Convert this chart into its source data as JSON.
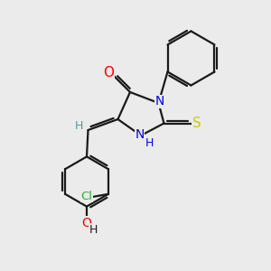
{
  "background_color": "#ebebeb",
  "bond_color": "#1a1a1a",
  "bond_lw": 1.6,
  "atom_colors": {
    "O": "#ff0000",
    "N": "#0000ee",
    "S": "#cccc00",
    "Cl": "#33aa33",
    "C": "#1a1a1a",
    "H": "#4a9a9a"
  },
  "xlim": [
    0,
    10
  ],
  "ylim": [
    0,
    10
  ]
}
